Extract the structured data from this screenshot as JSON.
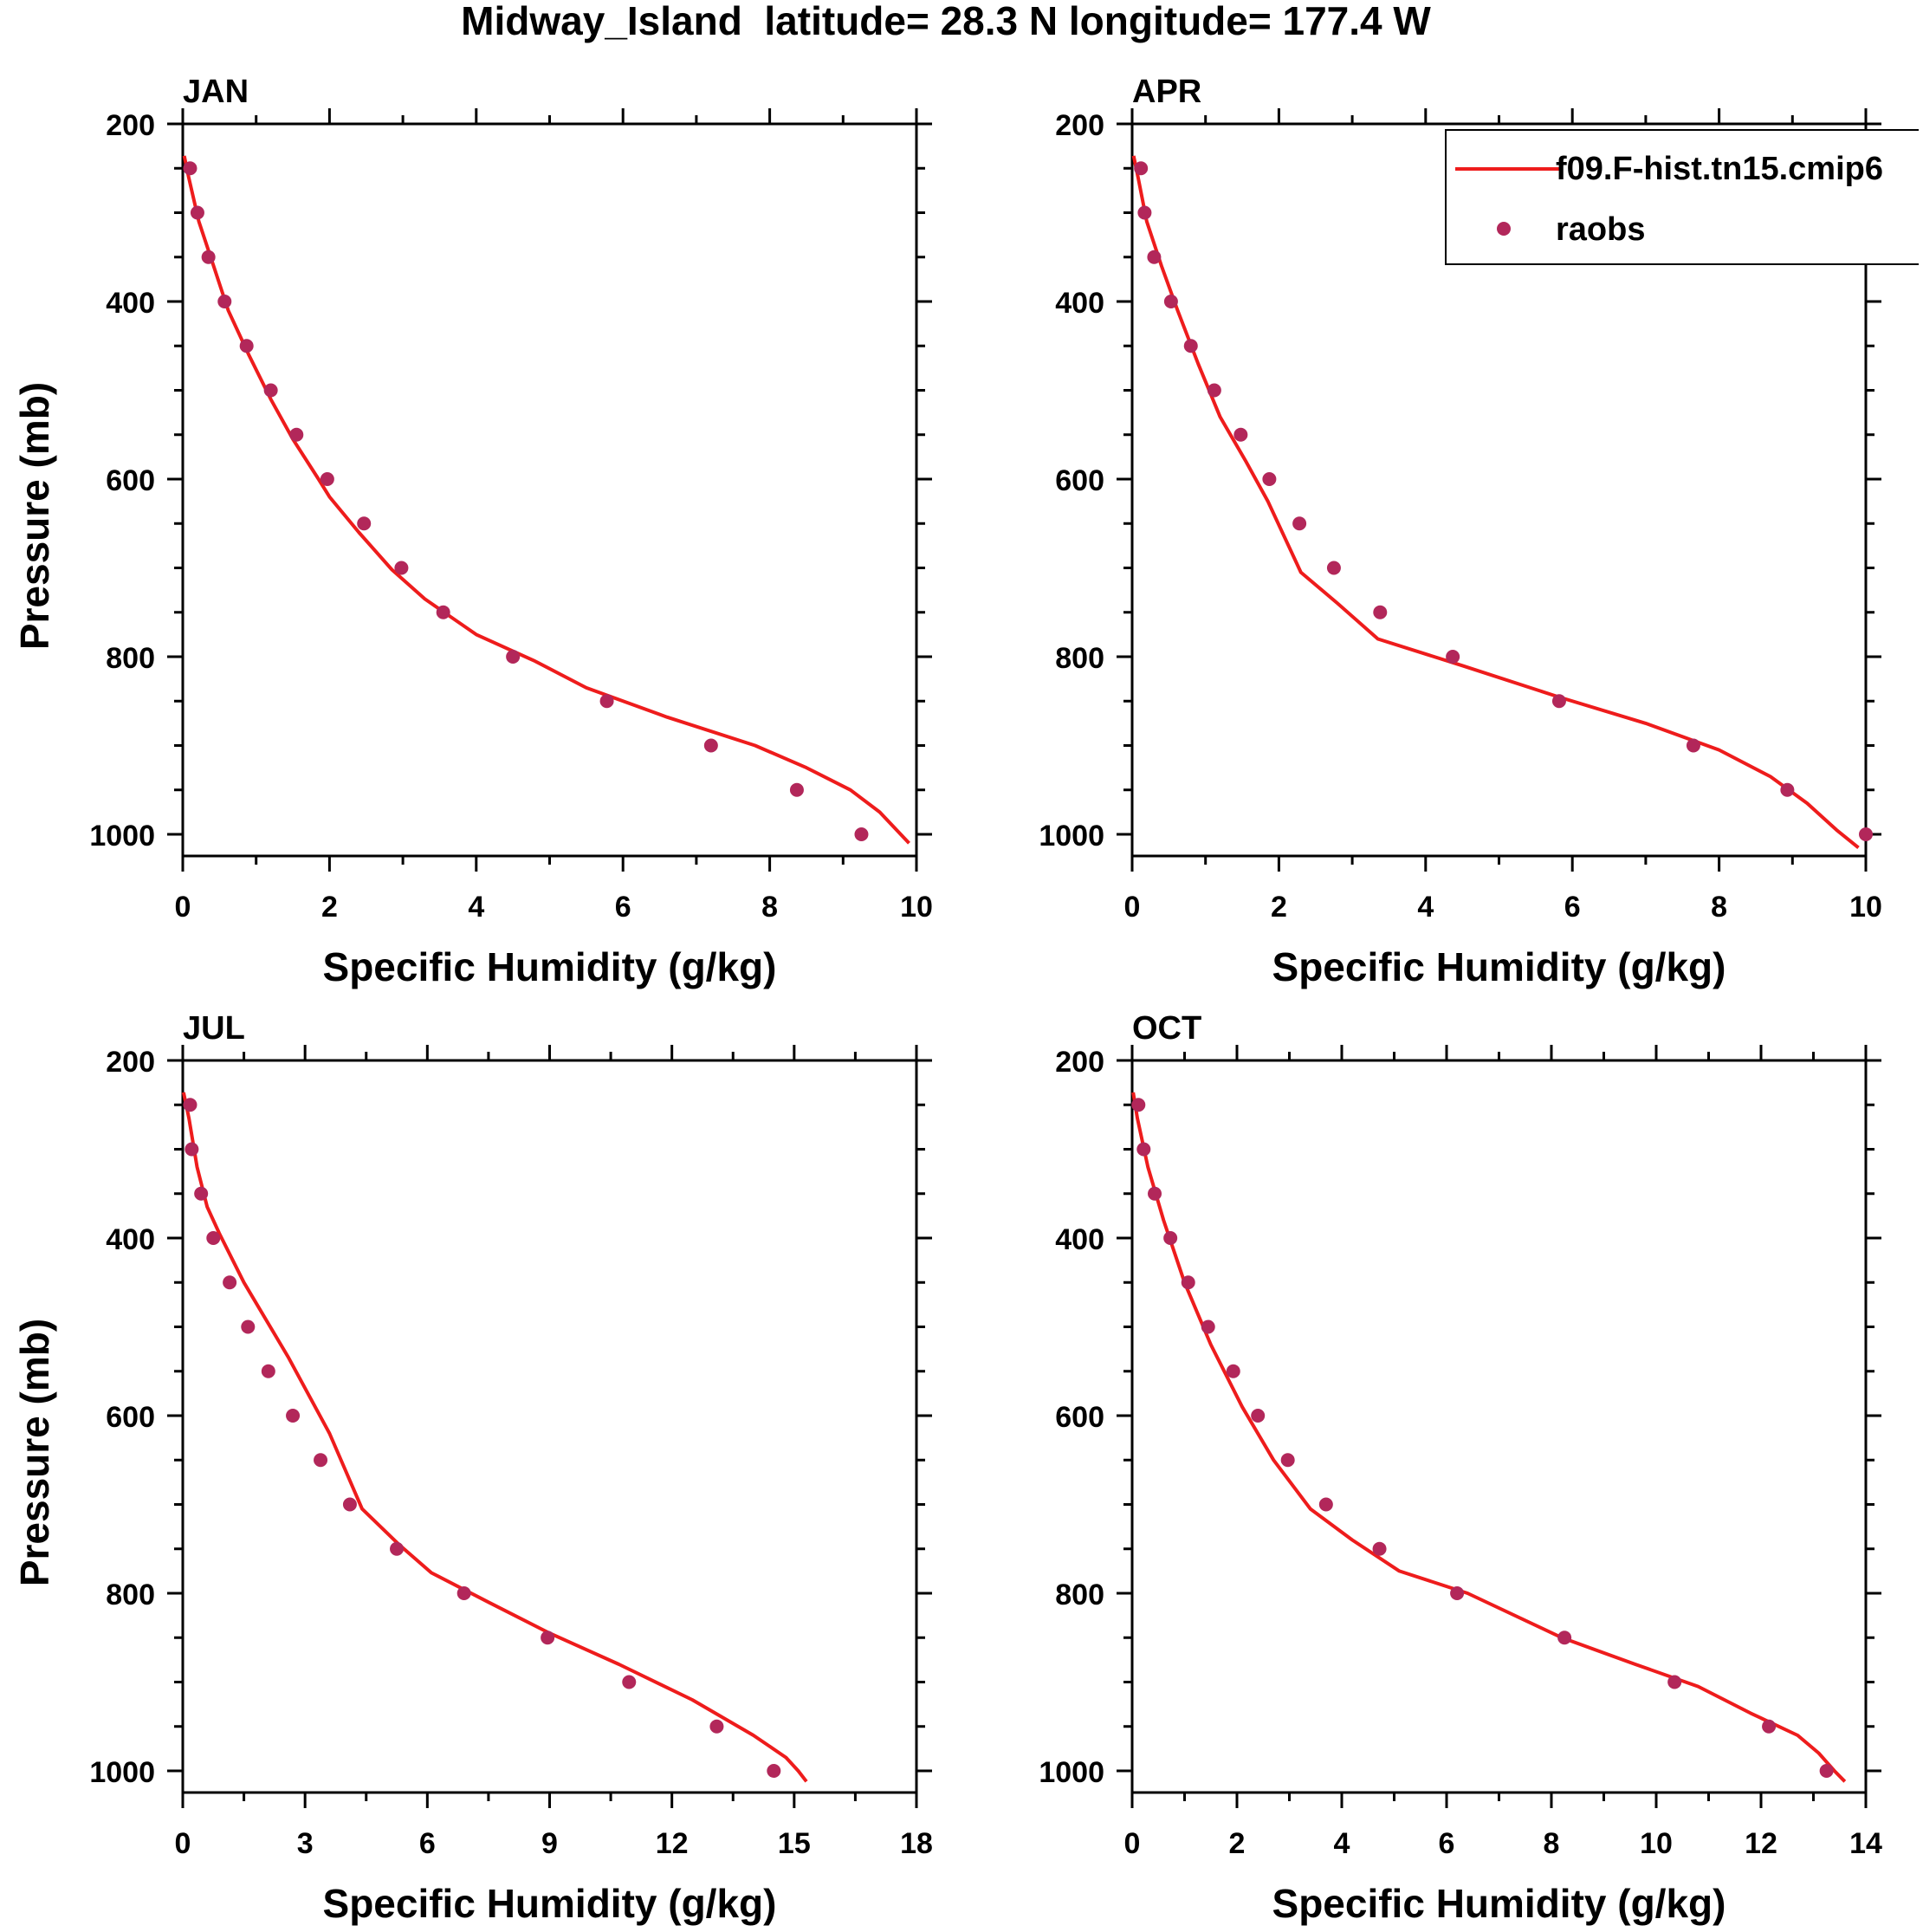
{
  "figure_title": "Midway_Island  latitude= 28.3 N longitude= 177.4 W",
  "colors": {
    "model": "#ee1c1c",
    "obs": "#b2275a",
    "axis": "#000000"
  },
  "legend": {
    "placement": "top-right of APR panel",
    "model_label": "f09.F-hist.tn15.cmip6",
    "obs_label": "raobs"
  },
  "chart_data": [
    {
      "type": "line",
      "panel_title": "JAN",
      "xlabel": "Specific Humidity (g/kg)",
      "ylabel": "Pressure (mb)",
      "xlim": [
        0,
        10
      ],
      "ylim": [
        1025,
        200
      ],
      "y_reversed": true,
      "xticks": [
        "0",
        "2",
        "4",
        "6",
        "8",
        "10"
      ],
      "yticks": [
        "200",
        "400",
        "600",
        "800",
        "1000"
      ],
      "series": [
        {
          "name": "f09.F-hist.tn15.cmip6",
          "kind": "line",
          "x": [
            0.02,
            0.08,
            0.22,
            0.42,
            0.62,
            0.9,
            1.2,
            1.5,
            1.85,
            2.0,
            2.4,
            2.85,
            3.3,
            4.0,
            4.8,
            5.5,
            6.6,
            7.8,
            8.5,
            9.1,
            9.5,
            9.9
          ],
          "y": [
            236,
            260,
            310,
            360,
            410,
            460,
            510,
            555,
            600,
            620,
            660,
            702,
            735,
            775,
            805,
            835,
            868,
            900,
            925,
            950,
            975,
            1010
          ]
        },
        {
          "name": "raobs",
          "kind": "scatter",
          "x": [
            0.1,
            0.2,
            0.35,
            0.57,
            0.87,
            1.2,
            1.55,
            1.97,
            2.47,
            2.98,
            3.55,
            4.5,
            5.78,
            7.2,
            8.37,
            9.25
          ],
          "y": [
            250,
            300,
            350,
            400,
            450,
            500,
            550,
            600,
            650,
            700,
            750,
            800,
            850,
            900,
            950,
            1000
          ]
        }
      ]
    },
    {
      "type": "line",
      "panel_title": "APR",
      "xlabel": "Specific Humidity (g/kg)",
      "ylabel": "",
      "xlim": [
        0,
        10
      ],
      "ylim": [
        1025,
        200
      ],
      "y_reversed": true,
      "xticks": [
        "0",
        "2",
        "4",
        "6",
        "8",
        "10"
      ],
      "yticks": [
        "200",
        "400",
        "600",
        "800",
        "1000"
      ],
      "series": [
        {
          "name": "f09.F-hist.tn15.cmip6",
          "kind": "line",
          "x": [
            0.02,
            0.08,
            0.2,
            0.4,
            0.62,
            0.9,
            1.2,
            1.55,
            1.85,
            2.3,
            2.8,
            3.35,
            4.5,
            5.8,
            7.0,
            8.0,
            8.7,
            9.2,
            9.6,
            9.9
          ],
          "y": [
            236,
            260,
            310,
            360,
            410,
            470,
            530,
            580,
            625,
            705,
            740,
            780,
            810,
            845,
            875,
            905,
            935,
            965,
            995,
            1015
          ]
        },
        {
          "name": "raobs",
          "kind": "scatter",
          "x": [
            0.12,
            0.17,
            0.3,
            0.53,
            0.8,
            1.12,
            1.48,
            1.87,
            2.28,
            2.75,
            3.38,
            4.37,
            5.82,
            7.65,
            8.93,
            10.0
          ],
          "y": [
            250,
            300,
            350,
            400,
            450,
            500,
            550,
            600,
            650,
            700,
            750,
            800,
            850,
            900,
            950,
            1000
          ]
        }
      ]
    },
    {
      "type": "line",
      "panel_title": "JUL",
      "xlabel": "Specific Humidity (g/kg)",
      "ylabel": "Pressure (mb)",
      "xlim": [
        0,
        18
      ],
      "ylim": [
        1025,
        200
      ],
      "y_reversed": true,
      "xticks": [
        "0",
        "3",
        "6",
        "9",
        "12",
        "15",
        "18"
      ],
      "yticks": [
        "200",
        "400",
        "600",
        "800",
        "1000"
      ],
      "series": [
        {
          "name": "f09.F-hist.tn15.cmip6",
          "kind": "line",
          "x": [
            0.02,
            0.15,
            0.35,
            0.6,
            0.9,
            1.5,
            2.6,
            3.6,
            4.4,
            5.3,
            6.1,
            7.5,
            9.0,
            10.7,
            12.5,
            14.0,
            14.8,
            15.1,
            15.3
          ],
          "y": [
            236,
            265,
            320,
            365,
            395,
            450,
            535,
            620,
            705,
            745,
            777,
            810,
            845,
            880,
            920,
            960,
            985,
            1000,
            1012
          ]
        },
        {
          "name": "raobs",
          "kind": "scatter",
          "x": [
            0.18,
            0.22,
            0.45,
            0.75,
            1.15,
            1.6,
            2.1,
            2.7,
            3.38,
            4.1,
            5.25,
            6.9,
            8.95,
            10.95,
            13.1,
            14.5
          ],
          "y": [
            250,
            300,
            350,
            400,
            450,
            500,
            550,
            600,
            650,
            700,
            750,
            800,
            850,
            900,
            950,
            1000
          ]
        }
      ]
    },
    {
      "type": "line",
      "panel_title": "OCT",
      "xlabel": "Specific Humidity (g/kg)",
      "ylabel": "",
      "xlim": [
        0,
        14
      ],
      "ylim": [
        1025,
        200
      ],
      "y_reversed": true,
      "xticks": [
        "0",
        "2",
        "4",
        "6",
        "8",
        "10",
        "12",
        "14"
      ],
      "yticks": [
        "200",
        "400",
        "600",
        "800",
        "1000"
      ],
      "series": [
        {
          "name": "f09.F-hist.tn15.cmip6",
          "kind": "line",
          "x": [
            0.02,
            0.1,
            0.3,
            0.6,
            1.0,
            1.5,
            2.1,
            2.7,
            3.4,
            4.2,
            5.1,
            6.4,
            8.2,
            9.6,
            10.8,
            11.8,
            12.7,
            13.1,
            13.4,
            13.6
          ],
          "y": [
            236,
            265,
            320,
            380,
            450,
            520,
            590,
            650,
            705,
            740,
            775,
            800,
            850,
            880,
            905,
            935,
            960,
            980,
            1000,
            1012
          ]
        },
        {
          "name": "raobs",
          "kind": "scatter",
          "x": [
            0.12,
            0.22,
            0.43,
            0.73,
            1.07,
            1.45,
            1.93,
            2.4,
            2.97,
            3.7,
            4.72,
            6.2,
            8.25,
            10.35,
            12.15,
            13.25
          ],
          "y": [
            250,
            300,
            350,
            400,
            450,
            500,
            550,
            600,
            650,
            700,
            750,
            800,
            850,
            900,
            950,
            1000
          ]
        }
      ]
    }
  ]
}
